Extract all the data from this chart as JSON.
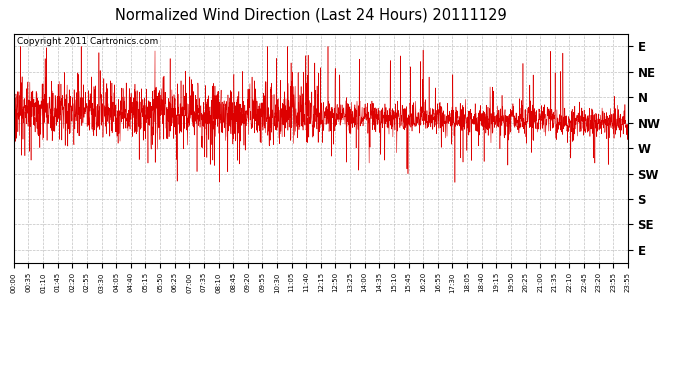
{
  "title": "Normalized Wind Direction (Last 24 Hours) 20111129",
  "copyright_text": "Copyright 2011 Cartronics.com",
  "line_color": "#DD0000",
  "background_color": "#ffffff",
  "plot_bg_color": "#ffffff",
  "grid_color": "#bbbbbb",
  "ytick_labels": [
    "E",
    "NE",
    "N",
    "NW",
    "W",
    "SW",
    "S",
    "SE",
    "E"
  ],
  "ytick_values": [
    8,
    7,
    6,
    5,
    4,
    3,
    2,
    1,
    0
  ],
  "ylim": [
    -0.5,
    8.5
  ],
  "seed": 1234,
  "n_points": 2880,
  "mean_level": 5.5,
  "std_level": 0.6,
  "figwidth": 6.9,
  "figheight": 3.75,
  "dpi": 100
}
